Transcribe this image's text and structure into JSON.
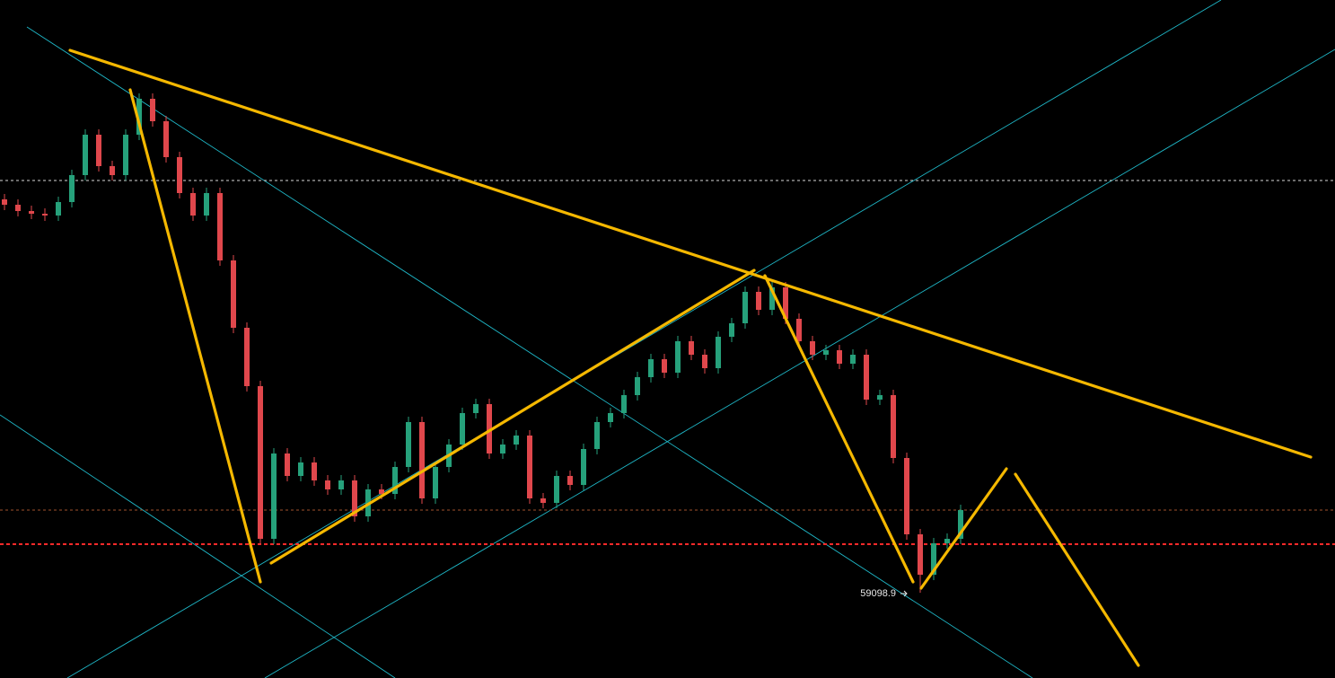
{
  "chart_data": {
    "type": "candlestick",
    "ylim": [
      58150,
      65700
    ],
    "up_color": "#26a17b",
    "down_color": "#e0474c",
    "open": [
      63480,
      63420,
      63350,
      63320,
      63300,
      63450,
      63750,
      64200,
      63850,
      63750,
      64200,
      64600,
      64350,
      63950,
      63550,
      63300,
      63550,
      62800,
      62050,
      61400,
      59700,
      60650,
      60400,
      60550,
      60350,
      60250,
      60350,
      59950,
      60250,
      60200,
      60500,
      61000,
      60150,
      60500,
      60750,
      61100,
      61200,
      60650,
      60750,
      60850,
      60150,
      60100,
      60400,
      60300,
      60700,
      61000,
      61100,
      61300,
      61500,
      61700,
      61550,
      61900,
      61750,
      61600,
      61950,
      62100,
      62450,
      62250,
      62500,
      62150,
      61900,
      61750,
      61800,
      61650,
      61750,
      61250,
      61300,
      60600,
      59750,
      59300,
      59650,
      59700
    ],
    "high": [
      63540,
      63480,
      63410,
      63380,
      63510,
      63810,
      64260,
      64260,
      63910,
      64260,
      64660,
      64660,
      64410,
      64010,
      63610,
      63610,
      63610,
      62860,
      62110,
      61460,
      60710,
      60710,
      60610,
      60610,
      60410,
      60410,
      60410,
      60310,
      60310,
      60560,
      61060,
      61060,
      60560,
      60810,
      61160,
      61260,
      61260,
      60810,
      60910,
      60910,
      60210,
      60460,
      60460,
      60760,
      61060,
      61160,
      61360,
      61560,
      61760,
      61760,
      61960,
      61960,
      61810,
      62010,
      62160,
      62510,
      62510,
      62560,
      62560,
      62210,
      61960,
      61860,
      61860,
      61810,
      61810,
      61360,
      61360,
      60660,
      59810,
      59710,
      59760,
      60080
    ],
    "low": [
      63360,
      63290,
      63260,
      63240,
      63240,
      63390,
      63690,
      63790,
      63690,
      63690,
      64140,
      64290,
      63890,
      63490,
      63240,
      63240,
      62740,
      61990,
      61340,
      59640,
      59640,
      60340,
      60340,
      60290,
      60190,
      60190,
      59890,
      59890,
      60140,
      60140,
      60440,
      60090,
      60090,
      60440,
      60690,
      61040,
      60590,
      60590,
      60690,
      60090,
      60040,
      60040,
      60240,
      60240,
      60640,
      60940,
      61040,
      61240,
      61440,
      61490,
      61490,
      61690,
      61540,
      61540,
      61890,
      62040,
      62190,
      62190,
      62090,
      61840,
      61690,
      61690,
      61590,
      61590,
      61190,
      61190,
      60540,
      59690,
      59098.9,
      59240,
      59590,
      59640
    ],
    "close": [
      63420,
      63350,
      63320,
      63300,
      63450,
      63750,
      64200,
      63850,
      63750,
      64200,
      64600,
      64350,
      63950,
      63550,
      63300,
      63550,
      62800,
      62050,
      61400,
      59700,
      60650,
      60400,
      60550,
      60350,
      60250,
      60350,
      59950,
      60250,
      60200,
      60500,
      61000,
      60150,
      60500,
      60750,
      61100,
      61200,
      60650,
      60750,
      60850,
      60150,
      60100,
      60400,
      60300,
      60700,
      61000,
      61100,
      61300,
      61500,
      61700,
      61550,
      61900,
      61750,
      61600,
      61950,
      62100,
      62450,
      62250,
      62500,
      62150,
      61900,
      61750,
      61800,
      61650,
      61750,
      61250,
      61300,
      60600,
      59750,
      59300,
      59650,
      59700,
      60020
    ],
    "hlines": [
      {
        "value": 63690,
        "color": "#d8d8d8"
      },
      {
        "value": 60020,
        "color": "#a0522d"
      },
      {
        "value": 59640,
        "color": "#ff2a2a"
      }
    ],
    "annotation": "59098.9"
  }
}
